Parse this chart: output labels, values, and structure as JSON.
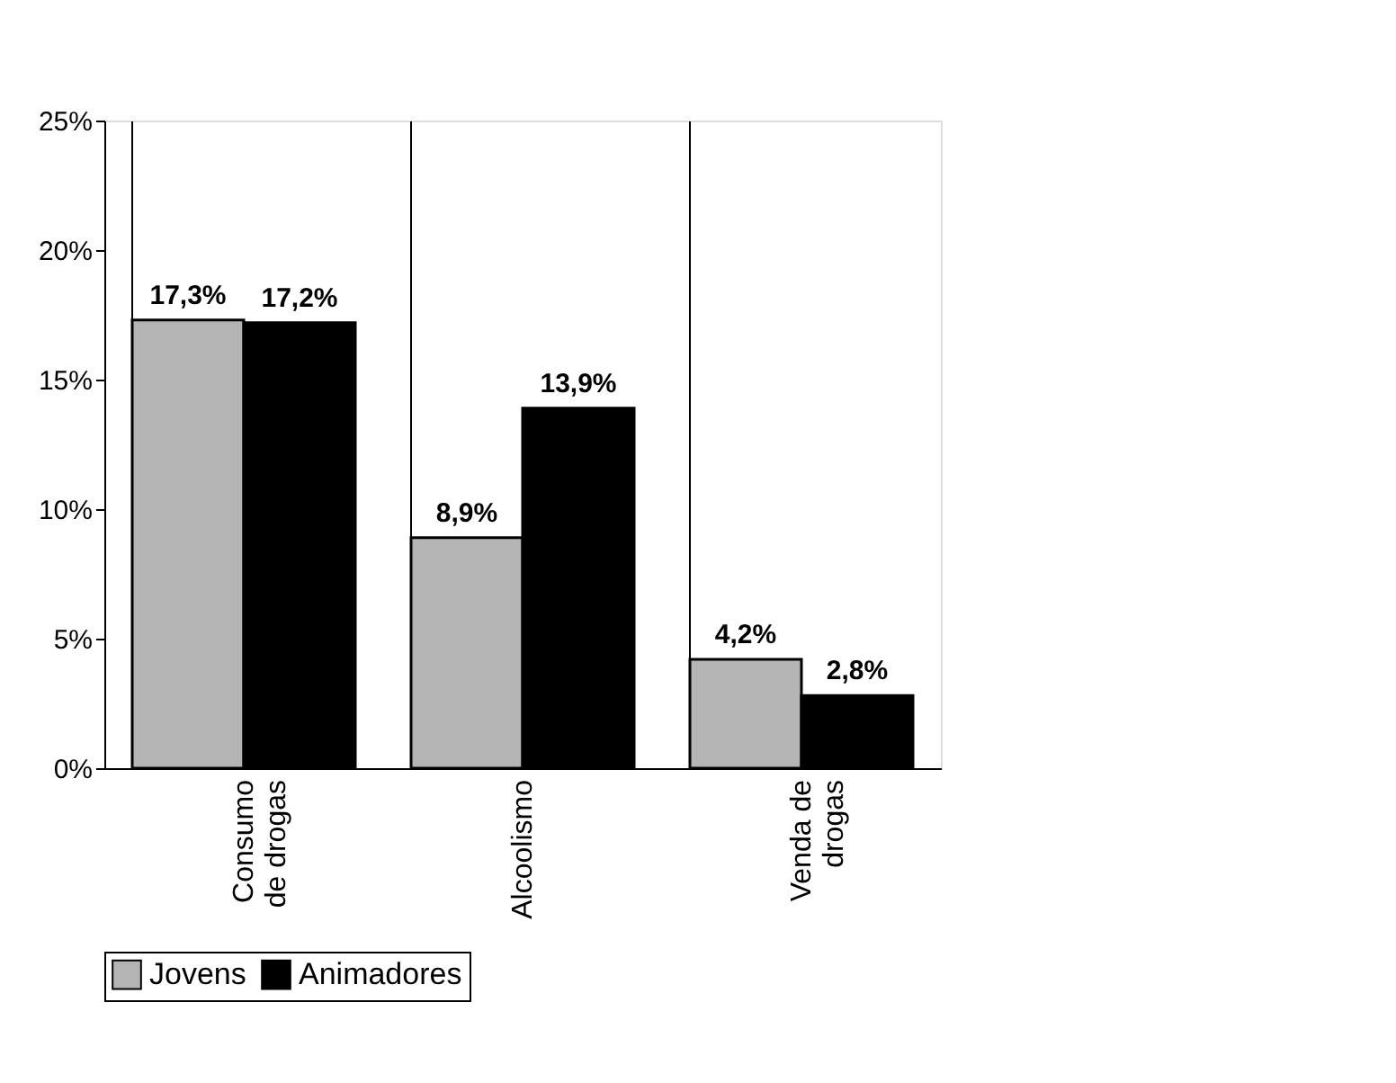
{
  "chart_data": {
    "type": "bar",
    "categories": [
      "Consumo\nde drogas",
      "Alcoolismo",
      "Venda de\ndrogas"
    ],
    "series": [
      {
        "name": "Jovens",
        "color": "#b4b4b4",
        "values": [
          17.3,
          8.9,
          4.2
        ],
        "value_labels": [
          "17,3%",
          "8,9%",
          "4,2%"
        ]
      },
      {
        "name": "Animadores",
        "color": "#000000",
        "values": [
          17.2,
          13.9,
          2.8
        ],
        "value_labels": [
          "17,2%",
          "13,9%",
          "2,8%"
        ]
      }
    ],
    "ylim": [
      0,
      25
    ],
    "yticks": [
      {
        "value": 0,
        "label": "0%"
      },
      {
        "value": 5,
        "label": "5%"
      },
      {
        "value": 10,
        "label": "10%"
      },
      {
        "value": 15,
        "label": "15%"
      },
      {
        "value": 20,
        "label": "20%"
      },
      {
        "value": 25,
        "label": "25%"
      }
    ],
    "grid": "x",
    "legend": "bottom"
  }
}
